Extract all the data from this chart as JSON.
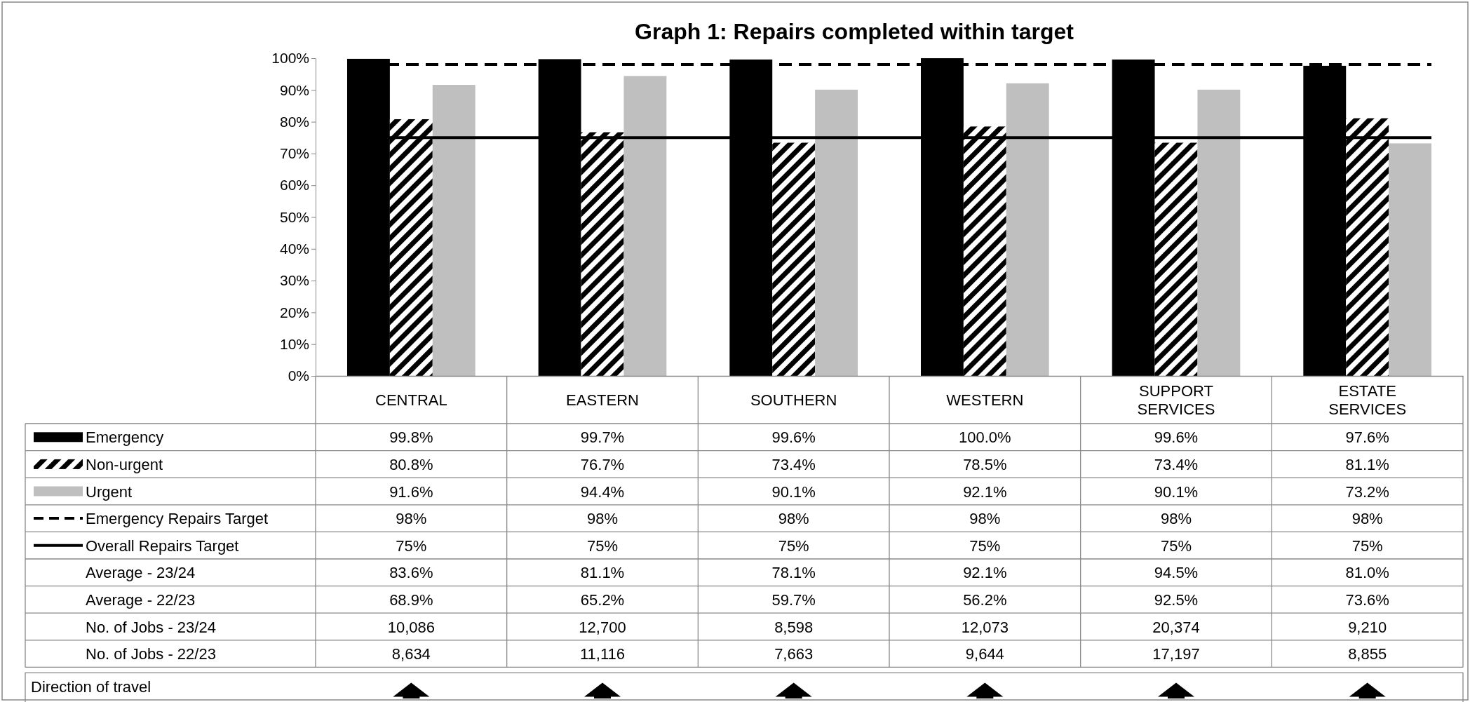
{
  "chart_data": {
    "type": "bar",
    "title": "Graph 1: Repairs completed within target",
    "categories": [
      "CENTRAL",
      "EASTERN",
      "SOUTHERN",
      "WESTERN",
      "SUPPORT SERVICES",
      "ESTATE SERVICES"
    ],
    "series": [
      {
        "name": "Emergency",
        "color": "#000000",
        "values": [
          99.8,
          99.7,
          99.6,
          100.0,
          99.6,
          97.6
        ],
        "value_labels": [
          "99.8%",
          "99.7%",
          "99.6%",
          "100.0%",
          "99.6%",
          "97.6%"
        ]
      },
      {
        "name": "Non-urgent",
        "color": "#000000",
        "values": [
          80.8,
          76.7,
          73.4,
          78.5,
          73.4,
          81.1
        ],
        "value_labels": [
          "80.8%",
          "76.7%",
          "73.4%",
          "78.5%",
          "73.4%",
          "81.1%"
        ]
      },
      {
        "name": "Urgent",
        "color": "#bfbfbf",
        "values": [
          91.6,
          94.4,
          90.1,
          92.1,
          90.1,
          73.2
        ],
        "value_labels": [
          "91.6%",
          "94.4%",
          "90.1%",
          "92.1%",
          "90.1%",
          "73.2%"
        ]
      }
    ],
    "ref_lines": [
      {
        "axis": "y",
        "value": 98,
        "label": "Emergency Repairs Target",
        "color": "#000000",
        "line_style": "dashed"
      },
      {
        "axis": "y",
        "value": 75,
        "label": "Overall Repairs Target",
        "color": "#000000",
        "line_style": "solid"
      }
    ],
    "ylim": [
      0,
      100
    ],
    "yticks": [
      {
        "value": 0,
        "label": "0%"
      },
      {
        "value": 10,
        "label": "10%"
      },
      {
        "value": 20,
        "label": "20%"
      },
      {
        "value": 30,
        "label": "30%"
      },
      {
        "value": 40,
        "label": "40%"
      },
      {
        "value": 50,
        "label": "50%"
      },
      {
        "value": 60,
        "label": "60%"
      },
      {
        "value": 70,
        "label": "70%"
      },
      {
        "value": 80,
        "label": "80%"
      },
      {
        "value": 90,
        "label": "90%"
      },
      {
        "value": 100,
        "label": "100%"
      }
    ],
    "annotations": [
      "98%",
      "98%",
      "98%",
      "98%",
      "98%",
      "98%",
      "75%",
      "75%",
      "75%",
      "75%",
      "75%",
      "75%",
      "Average -  23/24",
      "83.6%",
      "81.1%",
      "78.1%",
      "92.1%",
      "94.5%",
      "81.0%",
      "Average -  22/23",
      "68.9%",
      "65.2%",
      "59.7%",
      "56.2%",
      "92.5%",
      "73.6%",
      "No. of Jobs -  23/24",
      "10,086",
      "12,700",
      "8,598",
      "12,073",
      "20,374",
      "9,210",
      "No. of Jobs -  22/23",
      "8,634",
      "11,116",
      "7,663",
      "9,644",
      "17,197",
      "8,855",
      "Direction of travel"
    ],
    "legend": "bottom",
    "grid": false
  }
}
